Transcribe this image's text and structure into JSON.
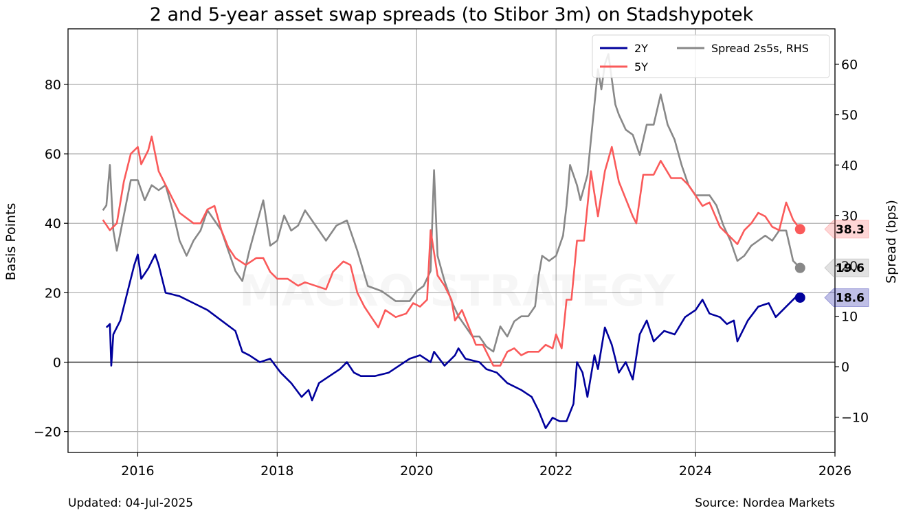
{
  "chart_data": {
    "type": "line",
    "title": "2 and 5-year asset swap spreads (to Stibor 3m) on Stadshypotek",
    "ylabel": "Basis Points",
    "y2label": "Spread (bps)",
    "xlim": [
      2015.0,
      2026.0
    ],
    "ylim": [
      -26,
      96
    ],
    "y2lim": [
      -17,
      67
    ],
    "xticks": [
      "2016",
      "2018",
      "2020",
      "2022",
      "2024",
      "2026"
    ],
    "yticks": [
      "−20",
      "0",
      "20",
      "40",
      "60",
      "80"
    ],
    "y2ticks": [
      "−10",
      "0",
      "10",
      "20",
      "30",
      "40",
      "50",
      "60"
    ],
    "grid": true,
    "legend_position": "top-right",
    "watermark": "MACRO STRATEGY",
    "series": [
      {
        "name": "2Y",
        "axis": "left",
        "color": "#00009c",
        "last_label": "18.6",
        "points": [
          [
            2015.55,
            10
          ],
          [
            2015.6,
            11
          ],
          [
            2015.62,
            -1
          ],
          [
            2015.65,
            8
          ],
          [
            2015.75,
            12
          ],
          [
            2015.85,
            20
          ],
          [
            2015.95,
            28
          ],
          [
            2016.0,
            31
          ],
          [
            2016.05,
            24
          ],
          [
            2016.15,
            27
          ],
          [
            2016.25,
            31
          ],
          [
            2016.3,
            28
          ],
          [
            2016.4,
            20
          ],
          [
            2016.6,
            19
          ],
          [
            2016.8,
            17
          ],
          [
            2017.0,
            15
          ],
          [
            2017.2,
            12
          ],
          [
            2017.4,
            9
          ],
          [
            2017.5,
            3
          ],
          [
            2017.6,
            2
          ],
          [
            2017.75,
            0
          ],
          [
            2017.9,
            1
          ],
          [
            2018.05,
            -3
          ],
          [
            2018.2,
            -6
          ],
          [
            2018.35,
            -10
          ],
          [
            2018.45,
            -8
          ],
          [
            2018.5,
            -11
          ],
          [
            2018.6,
            -6
          ],
          [
            2018.75,
            -4
          ],
          [
            2018.9,
            -2
          ],
          [
            2019.0,
            0
          ],
          [
            2019.1,
            -3
          ],
          [
            2019.2,
            -4
          ],
          [
            2019.4,
            -4
          ],
          [
            2019.6,
            -3
          ],
          [
            2019.75,
            -1
          ],
          [
            2019.9,
            1
          ],
          [
            2020.05,
            2
          ],
          [
            2020.2,
            0
          ],
          [
            2020.25,
            3
          ],
          [
            2020.4,
            -1
          ],
          [
            2020.55,
            2
          ],
          [
            2020.6,
            4
          ],
          [
            2020.7,
            1
          ],
          [
            2020.9,
            0
          ],
          [
            2021.0,
            -2
          ],
          [
            2021.15,
            -3
          ],
          [
            2021.3,
            -6
          ],
          [
            2021.5,
            -8
          ],
          [
            2021.65,
            -10
          ],
          [
            2021.75,
            -14
          ],
          [
            2021.85,
            -19
          ],
          [
            2021.95,
            -16
          ],
          [
            2022.05,
            -17
          ],
          [
            2022.15,
            -17
          ],
          [
            2022.25,
            -12
          ],
          [
            2022.3,
            0
          ],
          [
            2022.38,
            -3
          ],
          [
            2022.45,
            -10
          ],
          [
            2022.55,
            2
          ],
          [
            2022.6,
            -2
          ],
          [
            2022.7,
            10
          ],
          [
            2022.8,
            5
          ],
          [
            2022.9,
            -3
          ],
          [
            2023.0,
            0
          ],
          [
            2023.1,
            -5
          ],
          [
            2023.2,
            8
          ],
          [
            2023.3,
            12
          ],
          [
            2023.4,
            6
          ],
          [
            2023.55,
            9
          ],
          [
            2023.7,
            8
          ],
          [
            2023.85,
            13
          ],
          [
            2024.0,
            15
          ],
          [
            2024.1,
            18
          ],
          [
            2024.2,
            14
          ],
          [
            2024.35,
            13
          ],
          [
            2024.45,
            11
          ],
          [
            2024.55,
            12
          ],
          [
            2024.6,
            6
          ],
          [
            2024.75,
            12
          ],
          [
            2024.9,
            16
          ],
          [
            2025.05,
            17
          ],
          [
            2025.15,
            13
          ],
          [
            2025.3,
            16
          ],
          [
            2025.45,
            19
          ],
          [
            2025.5,
            18.6
          ]
        ]
      },
      {
        "name": "5Y",
        "axis": "left",
        "color": "#fa5a5a",
        "last_label": "38.3",
        "points": [
          [
            2015.5,
            41
          ],
          [
            2015.6,
            38
          ],
          [
            2015.7,
            40
          ],
          [
            2015.8,
            52
          ],
          [
            2015.9,
            60
          ],
          [
            2016.0,
            62
          ],
          [
            2016.05,
            57
          ],
          [
            2016.15,
            61
          ],
          [
            2016.2,
            65
          ],
          [
            2016.3,
            55
          ],
          [
            2016.4,
            51
          ],
          [
            2016.5,
            47
          ],
          [
            2016.6,
            43
          ],
          [
            2016.8,
            40
          ],
          [
            2016.9,
            40
          ],
          [
            2017.0,
            44
          ],
          [
            2017.1,
            45
          ],
          [
            2017.2,
            38
          ],
          [
            2017.3,
            33
          ],
          [
            2017.4,
            30
          ],
          [
            2017.55,
            28
          ],
          [
            2017.7,
            30
          ],
          [
            2017.8,
            30
          ],
          [
            2017.9,
            26
          ],
          [
            2018.0,
            24
          ],
          [
            2018.15,
            24
          ],
          [
            2018.3,
            22
          ],
          [
            2018.4,
            23
          ],
          [
            2018.7,
            21
          ],
          [
            2018.8,
            26
          ],
          [
            2018.95,
            29
          ],
          [
            2019.05,
            28
          ],
          [
            2019.15,
            20
          ],
          [
            2019.25,
            16
          ],
          [
            2019.35,
            13
          ],
          [
            2019.45,
            10
          ],
          [
            2019.55,
            15
          ],
          [
            2019.7,
            13
          ],
          [
            2019.85,
            14
          ],
          [
            2019.95,
            17
          ],
          [
            2020.05,
            16
          ],
          [
            2020.15,
            18
          ],
          [
            2020.2,
            38
          ],
          [
            2020.3,
            25
          ],
          [
            2020.4,
            22
          ],
          [
            2020.5,
            18
          ],
          [
            2020.55,
            12
          ],
          [
            2020.65,
            15
          ],
          [
            2020.75,
            10
          ],
          [
            2020.85,
            5
          ],
          [
            2020.95,
            5
          ],
          [
            2021.0,
            3
          ],
          [
            2021.1,
            -1
          ],
          [
            2021.2,
            -1
          ],
          [
            2021.3,
            3
          ],
          [
            2021.4,
            4
          ],
          [
            2021.5,
            2
          ],
          [
            2021.6,
            3
          ],
          [
            2021.75,
            3
          ],
          [
            2021.85,
            5
          ],
          [
            2021.95,
            4
          ],
          [
            2022.0,
            8
          ],
          [
            2022.08,
            4
          ],
          [
            2022.15,
            18
          ],
          [
            2022.22,
            18
          ],
          [
            2022.3,
            35
          ],
          [
            2022.4,
            35
          ],
          [
            2022.5,
            55
          ],
          [
            2022.6,
            42
          ],
          [
            2022.7,
            55
          ],
          [
            2022.8,
            62
          ],
          [
            2022.9,
            52
          ],
          [
            2023.0,
            47
          ],
          [
            2023.1,
            42
          ],
          [
            2023.15,
            40
          ],
          [
            2023.25,
            54
          ],
          [
            2023.4,
            54
          ],
          [
            2023.5,
            58
          ],
          [
            2023.65,
            53
          ],
          [
            2023.8,
            53
          ],
          [
            2023.9,
            51
          ],
          [
            2024.0,
            48
          ],
          [
            2024.1,
            45
          ],
          [
            2024.2,
            46
          ],
          [
            2024.35,
            39
          ],
          [
            2024.5,
            36
          ],
          [
            2024.6,
            34
          ],
          [
            2024.7,
            38
          ],
          [
            2024.8,
            40
          ],
          [
            2024.9,
            43
          ],
          [
            2025.0,
            42
          ],
          [
            2025.1,
            39
          ],
          [
            2025.2,
            38
          ],
          [
            2025.3,
            46
          ],
          [
            2025.4,
            41
          ],
          [
            2025.5,
            38.3
          ]
        ]
      },
      {
        "name": "Spread 2s5s, RHS",
        "axis": "right",
        "color": "#888888",
        "last_label": "19.6",
        "points": [
          [
            2015.5,
            31
          ],
          [
            2015.55,
            32
          ],
          [
            2015.6,
            40
          ],
          [
            2015.65,
            27
          ],
          [
            2015.7,
            23
          ],
          [
            2015.8,
            30
          ],
          [
            2015.9,
            37
          ],
          [
            2016.0,
            37
          ],
          [
            2016.1,
            33
          ],
          [
            2016.2,
            36
          ],
          [
            2016.3,
            35
          ],
          [
            2016.4,
            36
          ],
          [
            2016.5,
            31
          ],
          [
            2016.6,
            25
          ],
          [
            2016.7,
            22
          ],
          [
            2016.8,
            25
          ],
          [
            2016.9,
            27
          ],
          [
            2017.0,
            31
          ],
          [
            2017.1,
            29
          ],
          [
            2017.2,
            27
          ],
          [
            2017.3,
            23
          ],
          [
            2017.4,
            19
          ],
          [
            2017.5,
            17
          ],
          [
            2017.6,
            23
          ],
          [
            2017.7,
            28
          ],
          [
            2017.8,
            33
          ],
          [
            2017.9,
            24
          ],
          [
            2018.0,
            25
          ],
          [
            2018.1,
            30
          ],
          [
            2018.2,
            27
          ],
          [
            2018.3,
            28
          ],
          [
            2018.4,
            31
          ],
          [
            2018.7,
            25
          ],
          [
            2018.85,
            28
          ],
          [
            2019.0,
            29
          ],
          [
            2019.15,
            23
          ],
          [
            2019.3,
            16
          ],
          [
            2019.5,
            15
          ],
          [
            2019.7,
            13
          ],
          [
            2019.9,
            13
          ],
          [
            2020.0,
            15
          ],
          [
            2020.1,
            16
          ],
          [
            2020.2,
            19
          ],
          [
            2020.25,
            39
          ],
          [
            2020.3,
            22
          ],
          [
            2020.4,
            17
          ],
          [
            2020.5,
            13
          ],
          [
            2020.6,
            10
          ],
          [
            2020.7,
            8
          ],
          [
            2020.8,
            6
          ],
          [
            2020.9,
            6
          ],
          [
            2021.0,
            4
          ],
          [
            2021.1,
            3
          ],
          [
            2021.2,
            8
          ],
          [
            2021.3,
            6
          ],
          [
            2021.4,
            9
          ],
          [
            2021.5,
            10
          ],
          [
            2021.6,
            10
          ],
          [
            2021.7,
            12
          ],
          [
            2021.75,
            18
          ],
          [
            2021.8,
            22
          ],
          [
            2021.9,
            21
          ],
          [
            2022.0,
            22
          ],
          [
            2022.1,
            26
          ],
          [
            2022.15,
            32
          ],
          [
            2022.2,
            40
          ],
          [
            2022.3,
            36
          ],
          [
            2022.35,
            33
          ],
          [
            2022.45,
            38
          ],
          [
            2022.5,
            45
          ],
          [
            2022.6,
            59
          ],
          [
            2022.65,
            55
          ],
          [
            2022.7,
            60
          ],
          [
            2022.75,
            62
          ],
          [
            2022.8,
            57
          ],
          [
            2022.85,
            52
          ],
          [
            2022.9,
            50
          ],
          [
            2023.0,
            47
          ],
          [
            2023.1,
            46
          ],
          [
            2023.2,
            42
          ],
          [
            2023.3,
            48
          ],
          [
            2023.4,
            48
          ],
          [
            2023.5,
            54
          ],
          [
            2023.6,
            48
          ],
          [
            2023.7,
            45
          ],
          [
            2023.8,
            40
          ],
          [
            2023.9,
            36
          ],
          [
            2024.0,
            34
          ],
          [
            2024.1,
            34
          ],
          [
            2024.2,
            34
          ],
          [
            2024.3,
            32
          ],
          [
            2024.4,
            28
          ],
          [
            2024.5,
            25
          ],
          [
            2024.6,
            21
          ],
          [
            2024.7,
            22
          ],
          [
            2024.8,
            24
          ],
          [
            2024.9,
            25
          ],
          [
            2025.0,
            26
          ],
          [
            2025.1,
            25
          ],
          [
            2025.2,
            27
          ],
          [
            2025.3,
            27
          ],
          [
            2025.4,
            21
          ],
          [
            2025.5,
            19.6
          ]
        ]
      }
    ]
  },
  "footer": {
    "updated": "Updated: 04-Jul-2025",
    "source": "Source: Nordea Markets"
  }
}
